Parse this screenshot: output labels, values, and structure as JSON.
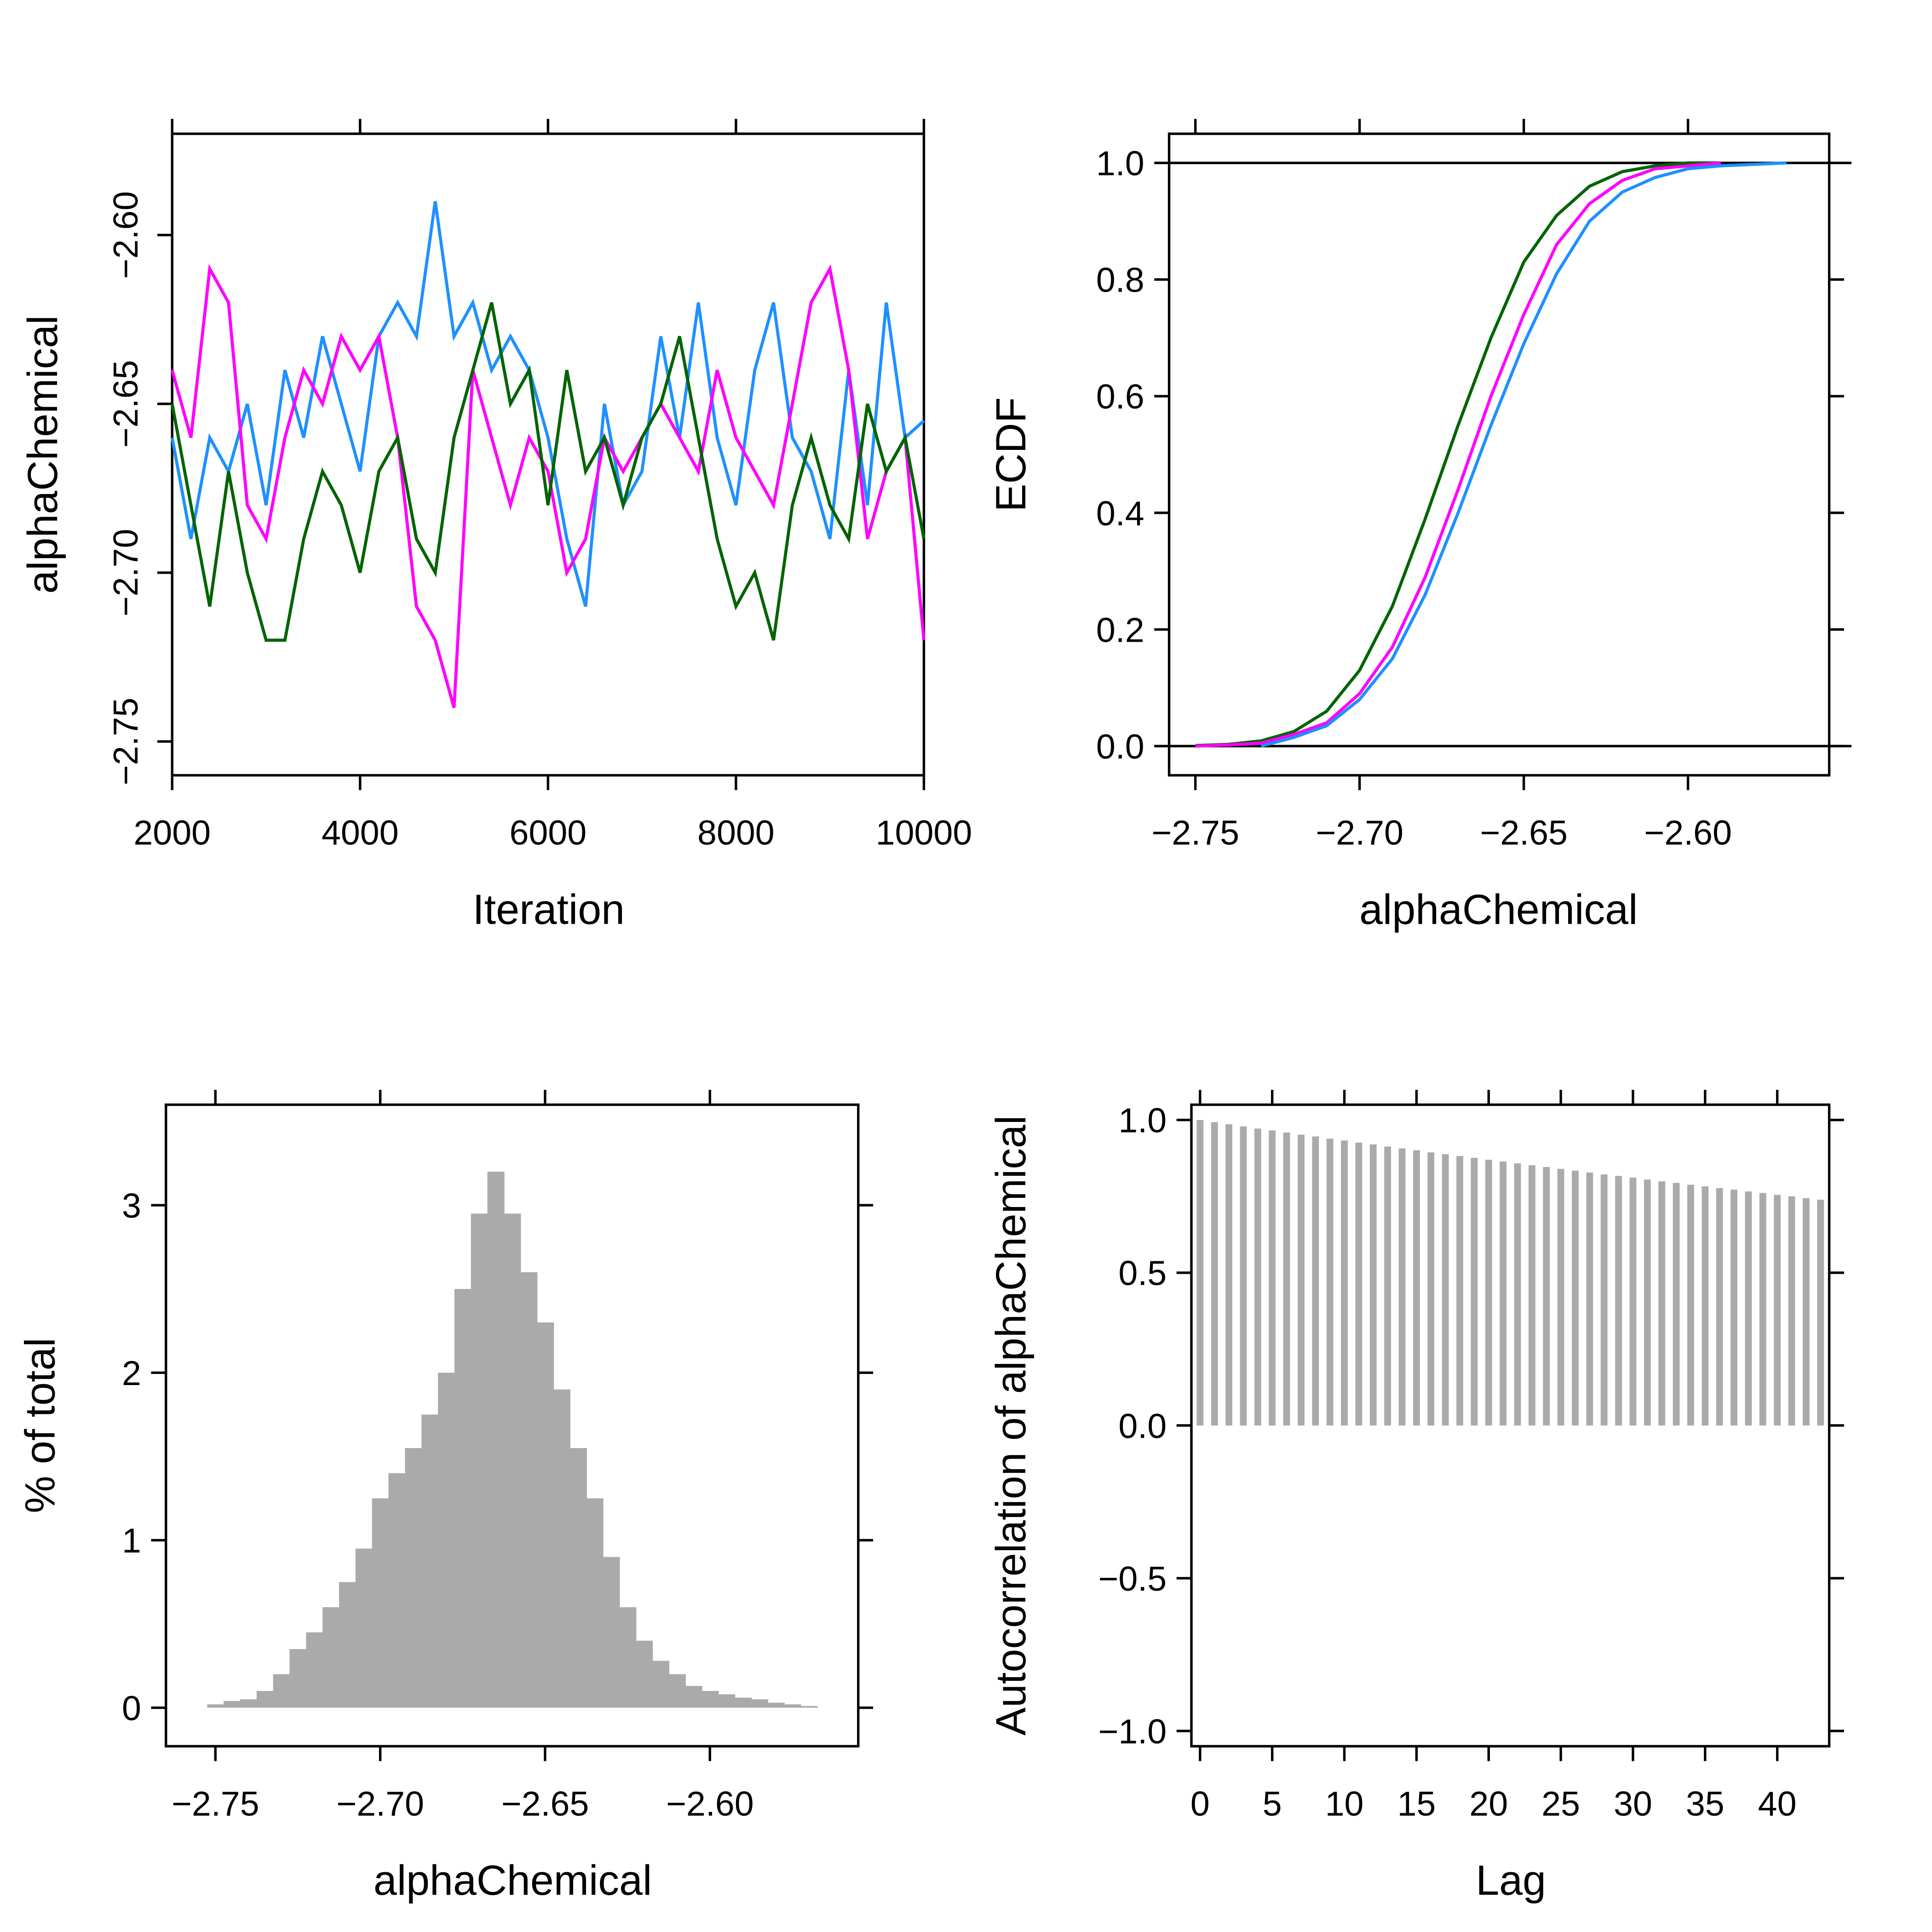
{
  "colors": {
    "chain1": "#1E90FF",
    "chain2": "#FF00FF",
    "chain3": "#006400",
    "bars": "#AAAAAA"
  },
  "chart_data": [
    {
      "type": "line",
      "xlabel": "Iteration",
      "ylabel": "alphaChemical",
      "xlim": [
        2000,
        10000
      ],
      "ylim": [
        -2.76,
        -2.57
      ],
      "xticks": [
        "2000",
        "4000",
        "6000",
        "8000",
        "10000"
      ],
      "yticks": [
        "-2.60",
        "-2.65",
        "-2.70",
        "-2.75"
      ],
      "x_start": 2000,
      "x_step": 200,
      "series": [
        {
          "color": "#1E90FF",
          "values": [
            -2.66,
            -2.69,
            -2.66,
            -2.67,
            -2.65,
            -2.68,
            -2.64,
            -2.66,
            -2.63,
            -2.65,
            -2.67,
            -2.63,
            -2.62,
            -2.63,
            -2.59,
            -2.63,
            -2.62,
            -2.64,
            -2.63,
            -2.64,
            -2.66,
            -2.69,
            -2.71,
            -2.65,
            -2.68,
            -2.67,
            -2.63,
            -2.66,
            -2.62,
            -2.66,
            -2.68,
            -2.64,
            -2.62,
            -2.66,
            -2.67,
            -2.69,
            -2.64,
            -2.68,
            -2.62,
            -2.66,
            -2.655
          ]
        },
        {
          "color": "#FF00FF",
          "values": [
            -2.64,
            -2.66,
            -2.61,
            -2.62,
            -2.68,
            -2.69,
            -2.66,
            -2.64,
            -2.65,
            -2.63,
            -2.64,
            -2.63,
            -2.66,
            -2.71,
            -2.72,
            -2.74,
            -2.64,
            -2.66,
            -2.68,
            -2.66,
            -2.67,
            -2.7,
            -2.69,
            -2.66,
            -2.67,
            -2.66,
            -2.65,
            -2.66,
            -2.67,
            -2.64,
            -2.66,
            -2.67,
            -2.68,
            -2.65,
            -2.62,
            -2.61,
            -2.64,
            -2.69,
            -2.67,
            -2.66,
            -2.72
          ]
        },
        {
          "color": "#006400",
          "values": [
            -2.65,
            -2.68,
            -2.71,
            -2.67,
            -2.7,
            -2.72,
            -2.72,
            -2.69,
            -2.67,
            -2.68,
            -2.7,
            -2.67,
            -2.66,
            -2.69,
            -2.7,
            -2.66,
            -2.64,
            -2.62,
            -2.65,
            -2.64,
            -2.68,
            -2.64,
            -2.67,
            -2.66,
            -2.68,
            -2.66,
            -2.65,
            -2.63,
            -2.66,
            -2.69,
            -2.71,
            -2.7,
            -2.72,
            -2.68,
            -2.66,
            -2.68,
            -2.69,
            -2.65,
            -2.67,
            -2.66,
            -2.69
          ]
        }
      ]
    },
    {
      "type": "line",
      "xlabel": "alphaChemical",
      "ylabel": "ECDF",
      "xlim": [
        -2.758,
        -2.557
      ],
      "ylim": [
        -0.05,
        1.05
      ],
      "xticks": [
        "-2.75",
        "-2.70",
        "-2.65",
        "-2.60"
      ],
      "yticks": [
        "0.0",
        "0.2",
        "0.4",
        "0.6",
        "0.8",
        "1.0"
      ],
      "reference_lines": [
        0,
        1
      ],
      "series": [
        {
          "color": "#006400",
          "x": [
            -2.75,
            -2.74,
            -2.73,
            -2.72,
            -2.71,
            -2.7,
            -2.69,
            -2.68,
            -2.67,
            -2.66,
            -2.65,
            -2.64,
            -2.63,
            -2.62,
            -2.61,
            -2.6,
            -2.59
          ],
          "y": [
            0.001,
            0.003,
            0.009,
            0.025,
            0.06,
            0.13,
            0.24,
            0.39,
            0.55,
            0.7,
            0.83,
            0.91,
            0.96,
            0.985,
            0.995,
            1,
            1
          ]
        },
        {
          "color": "#FF00FF",
          "x": [
            -2.75,
            -2.74,
            -2.73,
            -2.72,
            -2.71,
            -2.7,
            -2.69,
            -2.68,
            -2.67,
            -2.66,
            -2.65,
            -2.64,
            -2.63,
            -2.62,
            -2.61,
            -2.6,
            -2.59
          ],
          "y": [
            0,
            0.002,
            0.005,
            0.02,
            0.04,
            0.09,
            0.17,
            0.29,
            0.44,
            0.6,
            0.74,
            0.86,
            0.93,
            0.97,
            0.99,
            0.995,
            1
          ]
        },
        {
          "color": "#1E90FF",
          "x": [
            -2.73,
            -2.72,
            -2.71,
            -2.7,
            -2.69,
            -2.68,
            -2.67,
            -2.66,
            -2.65,
            -2.64,
            -2.63,
            -2.62,
            -2.61,
            -2.6,
            -2.59,
            -2.57
          ],
          "y": [
            0,
            0.015,
            0.035,
            0.08,
            0.15,
            0.26,
            0.4,
            0.55,
            0.69,
            0.81,
            0.9,
            0.95,
            0.975,
            0.99,
            0.995,
            1
          ]
        }
      ]
    },
    {
      "type": "bar",
      "xlabel": "alphaChemical",
      "ylabel": "% of total",
      "xlim": [
        -2.765,
        -2.555
      ],
      "ylim": [
        -0.23,
        3.6
      ],
      "xticks": [
        "-2.75",
        "-2.70",
        "-2.65",
        "-2.60"
      ],
      "yticks": [
        "0",
        "1",
        "2",
        "3"
      ],
      "bin_width": 0.005,
      "bin_centers": [
        -2.75,
        -2.745,
        -2.74,
        -2.735,
        -2.73,
        -2.725,
        -2.72,
        -2.715,
        -2.71,
        -2.705,
        -2.7,
        -2.695,
        -2.69,
        -2.685,
        -2.68,
        -2.675,
        -2.67,
        -2.665,
        -2.66,
        -2.655,
        -2.65,
        -2.645,
        -2.64,
        -2.635,
        -2.63,
        -2.625,
        -2.62,
        -2.615,
        -2.61,
        -2.605,
        -2.6,
        -2.595,
        -2.59,
        -2.585,
        -2.58,
        -2.575,
        -2.57
      ],
      "values": [
        0.02,
        0.04,
        0.05,
        0.1,
        0.2,
        0.35,
        0.45,
        0.6,
        0.75,
        0.95,
        1.25,
        1.4,
        1.55,
        1.75,
        2.0,
        2.5,
        2.95,
        3.2,
        2.95,
        2.6,
        2.3,
        1.9,
        1.55,
        1.25,
        0.9,
        0.6,
        0.4,
        0.28,
        0.2,
        0.13,
        0.1,
        0.08,
        0.06,
        0.05,
        0.03,
        0.02,
        0.01
      ]
    },
    {
      "type": "bar",
      "xlabel": "Lag",
      "ylabel": "Autocorrelation of alphaChemical",
      "xlim": [
        -0.6,
        43.6
      ],
      "ylim": [
        -1.05,
        1.05
      ],
      "xticks": [
        "0",
        "5",
        "10",
        "15",
        "20",
        "25",
        "30",
        "35",
        "40"
      ],
      "yticks": [
        "1.0",
        "0.5",
        "0.0",
        "-0.5",
        "-1.0"
      ],
      "lags": [
        0,
        1,
        2,
        3,
        4,
        5,
        6,
        7,
        8,
        9,
        10,
        11,
        12,
        13,
        14,
        15,
        16,
        17,
        18,
        19,
        20,
        21,
        22,
        23,
        24,
        25,
        26,
        27,
        28,
        29,
        30,
        31,
        32,
        33,
        34,
        35,
        36,
        37,
        38,
        39,
        40,
        41,
        42,
        43
      ],
      "values": [
        1.0,
        0.993,
        0.986,
        0.979,
        0.972,
        0.966,
        0.959,
        0.952,
        0.946,
        0.939,
        0.933,
        0.926,
        0.92,
        0.913,
        0.907,
        0.901,
        0.894,
        0.888,
        0.882,
        0.876,
        0.87,
        0.864,
        0.858,
        0.852,
        0.846,
        0.84,
        0.834,
        0.828,
        0.822,
        0.817,
        0.811,
        0.805,
        0.799,
        0.794,
        0.788,
        0.783,
        0.777,
        0.772,
        0.766,
        0.761,
        0.755,
        0.75,
        0.744,
        0.739
      ]
    }
  ]
}
